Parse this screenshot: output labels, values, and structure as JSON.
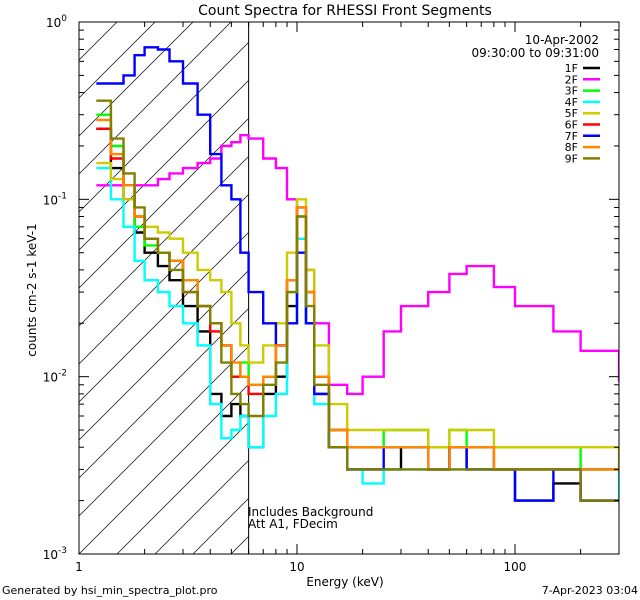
{
  "chart_data": {
    "type": "line",
    "title": "Count Spectra for RHESSI Front Segments",
    "xlabel": "Energy (keV)",
    "ylabel": "counts cm-2 s-1 keV-1",
    "xscale": "log",
    "yscale": "log",
    "xlim": [
      1,
      300
    ],
    "ylim": [
      0.001,
      1
    ],
    "x_ticks": [
      1,
      10,
      100
    ],
    "x_tick_labels": [
      "1",
      "10",
      "100"
    ],
    "y_ticks": [
      0.001,
      0.01,
      0.1,
      1
    ],
    "date": "10-Apr-2002",
    "time_range": "09:30:00 to 09:31:00",
    "annotations": [
      "Includes Background",
      "Att A1, FDecim"
    ],
    "attenuator_edge_kev": 6,
    "legend_position": "top-right",
    "footer_left": "Generated by hsi_min_spectra_plot.pro",
    "footer_right": "7-Apr-2023 03:04",
    "energy_bins_kev": [
      1.2,
      1.4,
      1.6,
      1.8,
      2.0,
      2.3,
      2.6,
      3.0,
      3.5,
      4.0,
      4.5,
      5.0,
      5.5,
      6.0,
      7.0,
      8.0,
      9.0,
      10.0,
      11.0,
      12.0,
      14.0,
      17.0,
      20.0,
      25.0,
      30.0,
      40.0,
      50.0,
      60.0,
      80.0,
      100.0,
      150.0,
      200.0,
      300.0
    ],
    "series": [
      {
        "name": "1F",
        "color": "#000000",
        "values": [
          0.25,
          0.15,
          0.1,
          0.065,
          0.05,
          0.042,
          0.035,
          0.025,
          0.018,
          0.008,
          0.006,
          0.007,
          0.006,
          0.004,
          0.008,
          0.01,
          0.025,
          0.06,
          0.02,
          0.008,
          0.004,
          0.003,
          0.003,
          0.003,
          0.004,
          0.003,
          0.004,
          0.003,
          0.003,
          0.002,
          0.0025,
          0.002,
          0.002
        ]
      },
      {
        "name": "2F",
        "color": "#ff00ff",
        "values": [
          0.12,
          0.12,
          0.12,
          0.12,
          0.12,
          0.13,
          0.14,
          0.15,
          0.16,
          0.17,
          0.2,
          0.21,
          0.23,
          0.22,
          0.17,
          0.15,
          0.1,
          0.06,
          0.04,
          0.02,
          0.009,
          0.008,
          0.01,
          0.018,
          0.025,
          0.03,
          0.038,
          0.042,
          0.032,
          0.025,
          0.018,
          0.014,
          0.0095
        ]
      },
      {
        "name": "3F",
        "color": "#00ff00",
        "values": [
          0.3,
          0.2,
          0.12,
          0.07,
          0.055,
          0.05,
          0.045,
          0.035,
          0.025,
          0.02,
          0.015,
          0.01,
          0.012,
          0.009,
          0.01,
          0.015,
          0.03,
          0.08,
          0.03,
          0.01,
          0.005,
          0.004,
          0.004,
          0.005,
          0.005,
          0.004,
          0.005,
          0.004,
          0.004,
          0.004,
          0.004,
          0.003,
          0.003
        ]
      },
      {
        "name": "4F",
        "color": "#00ffff",
        "values": [
          0.15,
          0.1,
          0.07,
          0.045,
          0.035,
          0.03,
          0.025,
          0.02,
          0.015,
          0.007,
          0.0045,
          0.005,
          0.006,
          0.004,
          0.006,
          0.008,
          0.02,
          0.06,
          0.02,
          0.007,
          0.004,
          0.003,
          0.0025,
          0.003,
          0.003,
          0.003,
          0.003,
          0.003,
          0.003,
          0.003,
          0.003,
          0.003,
          0.002
        ]
      },
      {
        "name": "5F",
        "color": "#cccc00",
        "values": [
          0.16,
          0.13,
          0.1,
          0.08,
          0.07,
          0.065,
          0.06,
          0.05,
          0.04,
          0.035,
          0.03,
          0.02,
          0.015,
          0.012,
          0.015,
          0.02,
          0.05,
          0.1,
          0.04,
          0.015,
          0.007,
          0.005,
          0.005,
          0.005,
          0.005,
          0.004,
          0.005,
          0.005,
          0.004,
          0.004,
          0.004,
          0.004,
          0.003
        ]
      },
      {
        "name": "6F",
        "color": "#ff0000",
        "values": [
          0.25,
          0.17,
          0.12,
          0.08,
          0.06,
          0.05,
          0.045,
          0.03,
          0.025,
          0.018,
          0.015,
          0.01,
          0.01,
          0.008,
          0.01,
          0.015,
          0.035,
          0.09,
          0.03,
          0.01,
          0.005,
          0.004,
          0.004,
          0.004,
          0.004,
          0.003,
          0.004,
          0.004,
          0.003,
          0.003,
          0.003,
          0.003,
          0.003
        ]
      },
      {
        "name": "7F",
        "color": "#0000ff",
        "values": [
          0.45,
          0.45,
          0.5,
          0.65,
          0.72,
          0.7,
          0.6,
          0.45,
          0.3,
          0.18,
          0.12,
          0.1,
          0.05,
          0.03,
          0.02,
          0.015,
          0.02,
          0.05,
          0.02,
          0.008,
          0.004,
          0.003,
          0.003,
          0.004,
          0.004,
          0.003,
          0.004,
          0.003,
          0.003,
          0.002,
          0.003,
          0.002,
          0.002
        ]
      },
      {
        "name": "8F",
        "color": "#ff8800",
        "values": [
          0.28,
          0.18,
          0.12,
          0.08,
          0.06,
          0.05,
          0.045,
          0.035,
          0.025,
          0.02,
          0.015,
          0.012,
          0.01,
          0.009,
          0.01,
          0.015,
          0.035,
          0.09,
          0.03,
          0.01,
          0.005,
          0.004,
          0.004,
          0.004,
          0.004,
          0.003,
          0.004,
          0.004,
          0.003,
          0.003,
          0.003,
          0.003,
          0.003
        ]
      },
      {
        "name": "9F",
        "color": "#808000",
        "values": [
          0.36,
          0.22,
          0.14,
          0.09,
          0.06,
          0.05,
          0.04,
          0.03,
          0.025,
          0.02,
          0.012,
          0.008,
          0.007,
          0.006,
          0.009,
          0.012,
          0.03,
          0.08,
          0.025,
          0.009,
          0.004,
          0.003,
          0.003,
          0.003,
          0.003,
          0.003,
          0.003,
          0.003,
          0.003,
          0.003,
          0.003,
          0.002,
          0.002
        ]
      }
    ]
  }
}
